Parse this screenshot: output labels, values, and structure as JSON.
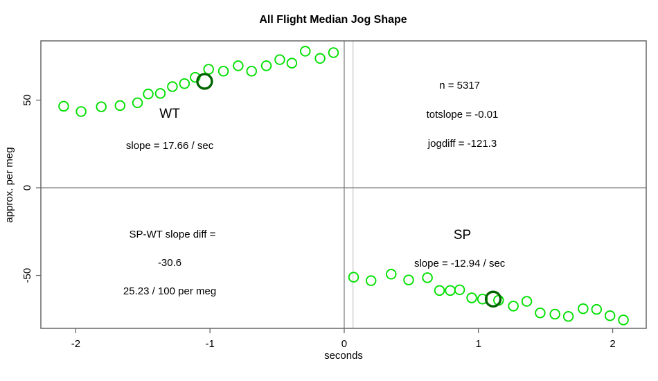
{
  "chart_data": {
    "type": "scatter",
    "title": "All Flight Median Jog Shape",
    "xlabel": "seconds",
    "ylabel": "approx. per meg",
    "xlim": [
      -2.26,
      2.25
    ],
    "ylim": [
      -80.2,
      83.8
    ],
    "xticks": [
      -2,
      -1,
      0,
      1,
      2
    ],
    "yticks": [
      -50,
      0,
      50
    ],
    "grid": false,
    "legend": "none",
    "colors": {
      "point": "#00e000",
      "highlight": "#006400",
      "frame": "#666666",
      "refline": "#808080",
      "light_refline": "#dddddd"
    },
    "reference_lines": [
      {
        "orient": "v",
        "at": 0.065,
        "weight": "light"
      },
      {
        "orient": "v",
        "at": 0,
        "weight": "normal"
      },
      {
        "orient": "h",
        "at": 0,
        "weight": "normal"
      }
    ],
    "series": [
      {
        "name": "WT",
        "points": [
          [
            -2.09,
            46.5
          ],
          [
            -1.96,
            43.5
          ],
          [
            -1.81,
            46.2
          ],
          [
            -1.67,
            46.9
          ],
          [
            -1.54,
            48.5
          ],
          [
            -1.46,
            53.5
          ],
          [
            -1.37,
            53.8
          ],
          [
            -1.28,
            57.7
          ],
          [
            -1.19,
            59.4
          ],
          [
            -1.11,
            63.0
          ],
          [
            -1.01,
            67.6
          ],
          [
            -0.9,
            66.5
          ],
          [
            -0.79,
            69.6
          ],
          [
            -0.69,
            66.5
          ],
          [
            -0.58,
            69.6
          ],
          [
            -0.48,
            73.1
          ],
          [
            -0.39,
            71.1
          ],
          [
            -0.29,
            77.9
          ],
          [
            -0.18,
            73.8
          ],
          [
            -0.08,
            77.1
          ]
        ]
      },
      {
        "name": "SP",
        "points": [
          [
            0.07,
            -51.0
          ],
          [
            0.2,
            -53.0
          ],
          [
            0.35,
            -49.3
          ],
          [
            0.48,
            -52.6
          ],
          [
            0.62,
            -51.3
          ],
          [
            0.71,
            -58.6
          ],
          [
            0.79,
            -58.6
          ],
          [
            0.86,
            -58.2
          ],
          [
            0.95,
            -62.8
          ],
          [
            1.03,
            -63.5
          ],
          [
            1.15,
            -64.2
          ],
          [
            1.26,
            -67.5
          ],
          [
            1.36,
            -64.8
          ],
          [
            1.46,
            -71.4
          ],
          [
            1.57,
            -72.1
          ],
          [
            1.67,
            -73.4
          ],
          [
            1.78,
            -69.0
          ],
          [
            1.88,
            -69.4
          ],
          [
            1.98,
            -73.0
          ],
          [
            2.08,
            -75.4
          ]
        ]
      }
    ],
    "highlight_points": [
      {
        "series": "WT",
        "x": -1.04,
        "y": 60.7
      },
      {
        "series": "SP",
        "x": 1.11,
        "y": -63.5
      }
    ],
    "annotations": [
      {
        "text": "WT",
        "x": -1.3,
        "y": 41.9,
        "style": "group-label"
      },
      {
        "text": "slope = 17.66 / sec",
        "x": -1.3,
        "y": 24.1,
        "style": "stat"
      },
      {
        "text": "n = 5317",
        "x": 0.86,
        "y": 58.5,
        "style": "stat"
      },
      {
        "text": "totslope = -0.01",
        "x": 0.88,
        "y": 41.9,
        "style": "stat"
      },
      {
        "text": "jogdiff = -121.3",
        "x": 0.88,
        "y": 25.3,
        "style": "stat"
      },
      {
        "text": "SP-WT slope diff =",
        "x": -1.28,
        "y": -26.5,
        "style": "stat"
      },
      {
        "text": "-30.6",
        "x": -1.3,
        "y": -42.7,
        "style": "stat"
      },
      {
        "text": "25.23 / 100 per meg",
        "x": -1.3,
        "y": -58.9,
        "style": "stat"
      },
      {
        "text": "SP",
        "x": 0.88,
        "y": -27.3,
        "style": "group-label"
      },
      {
        "text": "slope = -12.94 / sec",
        "x": 0.86,
        "y": -43.1,
        "style": "stat"
      }
    ]
  }
}
